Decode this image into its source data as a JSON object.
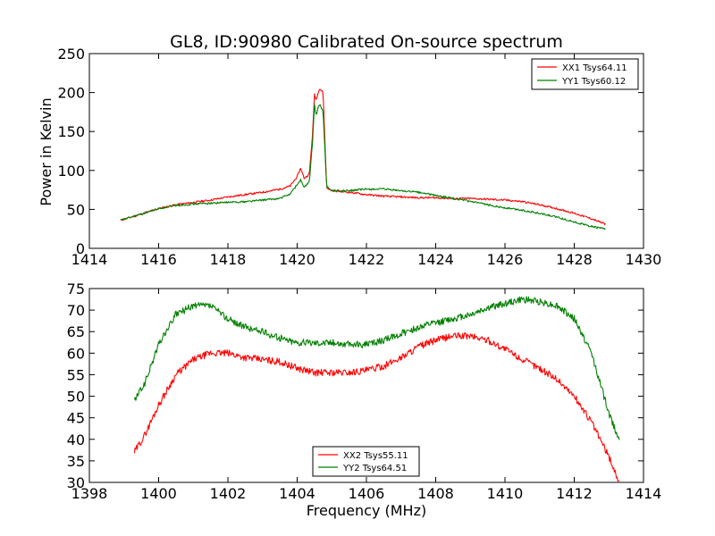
{
  "title": "GL8, ID:90980 Calibrated On-source spectrum",
  "chart_data": [
    {
      "type": "line",
      "ylabel": "Power in Kelvin",
      "xlabel": "",
      "xlim": [
        1414,
        1430
      ],
      "ylim": [
        0,
        250
      ],
      "xticks": [
        "1414",
        "1416",
        "1418",
        "1420",
        "1422",
        "1424",
        "1426",
        "1428",
        "1430"
      ],
      "yticks": [
        "0",
        "50",
        "100",
        "150",
        "200",
        "250"
      ],
      "legend_position": "top-right",
      "grid": false,
      "noise": 1.2,
      "series": [
        {
          "name": "XX1 Tsys64.11",
          "color": "#ff0000",
          "points": [
            [
              1414.9,
              36
            ],
            [
              1415.5,
              44
            ],
            [
              1416.0,
              51
            ],
            [
              1416.5,
              56
            ],
            [
              1417.0,
              59
            ],
            [
              1417.5,
              62
            ],
            [
              1418.0,
              66
            ],
            [
              1418.5,
              69
            ],
            [
              1419.0,
              72
            ],
            [
              1419.5,
              76
            ],
            [
              1419.8,
              80
            ],
            [
              1420.0,
              92
            ],
            [
              1420.1,
              103
            ],
            [
              1420.2,
              90
            ],
            [
              1420.35,
              95
            ],
            [
              1420.45,
              150
            ],
            [
              1420.5,
              198
            ],
            [
              1420.55,
              190
            ],
            [
              1420.6,
              200
            ],
            [
              1420.65,
              205
            ],
            [
              1420.75,
              200
            ],
            [
              1420.85,
              78
            ],
            [
              1421.0,
              74
            ],
            [
              1421.5,
              72
            ],
            [
              1422.0,
              69
            ],
            [
              1422.5,
              67
            ],
            [
              1423.0,
              66
            ],
            [
              1423.5,
              65
            ],
            [
              1424.0,
              65
            ],
            [
              1424.5,
              64
            ],
            [
              1425.0,
              64
            ],
            [
              1425.5,
              63
            ],
            [
              1426.0,
              62
            ],
            [
              1426.5,
              60
            ],
            [
              1427.0,
              56
            ],
            [
              1427.5,
              51
            ],
            [
              1428.0,
              45
            ],
            [
              1428.5,
              38
            ],
            [
              1428.9,
              31
            ]
          ]
        },
        {
          "name": "YY1 Tsys60.12",
          "color": "#008000",
          "points": [
            [
              1414.9,
              36
            ],
            [
              1415.5,
              44
            ],
            [
              1416.0,
              51
            ],
            [
              1416.5,
              55
            ],
            [
              1417.0,
              57
            ],
            [
              1417.5,
              58
            ],
            [
              1418.0,
              59
            ],
            [
              1418.5,
              60
            ],
            [
              1419.0,
              62
            ],
            [
              1419.5,
              64
            ],
            [
              1419.8,
              70
            ],
            [
              1420.0,
              82
            ],
            [
              1420.1,
              88
            ],
            [
              1420.2,
              78
            ],
            [
              1420.35,
              85
            ],
            [
              1420.45,
              140
            ],
            [
              1420.5,
              185
            ],
            [
              1420.55,
              170
            ],
            [
              1420.6,
              180
            ],
            [
              1420.65,
              185
            ],
            [
              1420.75,
              175
            ],
            [
              1420.85,
              80
            ],
            [
              1421.0,
              74
            ],
            [
              1421.5,
              74
            ],
            [
              1422.0,
              76
            ],
            [
              1422.5,
              76
            ],
            [
              1423.0,
              74
            ],
            [
              1423.5,
              72
            ],
            [
              1424.0,
              68
            ],
            [
              1424.5,
              64
            ],
            [
              1425.0,
              60
            ],
            [
              1425.5,
              56
            ],
            [
              1426.0,
              52
            ],
            [
              1426.5,
              49
            ],
            [
              1427.0,
              45
            ],
            [
              1427.5,
              40
            ],
            [
              1428.0,
              34
            ],
            [
              1428.5,
              28
            ],
            [
              1428.9,
              25
            ]
          ]
        }
      ]
    },
    {
      "type": "line",
      "xlabel": "Frequency (MHz)",
      "ylabel": "",
      "xlim": [
        1398,
        1414
      ],
      "ylim": [
        30,
        75
      ],
      "xticks": [
        "1398",
        "1400",
        "1402",
        "1404",
        "1406",
        "1408",
        "1410",
        "1412",
        "1414"
      ],
      "yticks": [
        "30",
        "35",
        "40",
        "45",
        "50",
        "55",
        "60",
        "65",
        "70",
        "75"
      ],
      "legend_position": "bottom-center",
      "grid": false,
      "noise": 0.8,
      "series": [
        {
          "name": "XX2 Tsys55.11",
          "color": "#ff0000",
          "points": [
            [
              1399.3,
              37
            ],
            [
              1399.6,
              41
            ],
            [
              1400.0,
              48
            ],
            [
              1400.5,
              55
            ],
            [
              1401.0,
              58.5
            ],
            [
              1401.5,
              60
            ],
            [
              1402.0,
              60
            ],
            [
              1402.5,
              59
            ],
            [
              1403.0,
              58.5
            ],
            [
              1403.5,
              58
            ],
            [
              1404.0,
              56.5
            ],
            [
              1404.5,
              55.5
            ],
            [
              1405.0,
              55.5
            ],
            [
              1405.5,
              55.5
            ],
            [
              1406.0,
              56
            ],
            [
              1406.5,
              57
            ],
            [
              1407.0,
              59
            ],
            [
              1407.5,
              61.5
            ],
            [
              1408.0,
              63
            ],
            [
              1408.5,
              64
            ],
            [
              1409.0,
              64
            ],
            [
              1409.5,
              63
            ],
            [
              1410.0,
              61
            ],
            [
              1410.5,
              58.5
            ],
            [
              1411.0,
              56.5
            ],
            [
              1411.5,
              54
            ],
            [
              1412.0,
              50
            ],
            [
              1412.5,
              44
            ],
            [
              1413.0,
              36
            ],
            [
              1413.3,
              30
            ]
          ]
        },
        {
          "name": "YY2 Tsys64.51",
          "color": "#008000",
          "points": [
            [
              1399.3,
              49
            ],
            [
              1399.6,
              53
            ],
            [
              1400.0,
              62
            ],
            [
              1400.5,
              69
            ],
            [
              1401.0,
              71
            ],
            [
              1401.5,
              71
            ],
            [
              1402.0,
              68
            ],
            [
              1402.5,
              66
            ],
            [
              1403.0,
              65
            ],
            [
              1403.5,
              63.5
            ],
            [
              1404.0,
              62.5
            ],
            [
              1404.5,
              62.5
            ],
            [
              1405.0,
              62.5
            ],
            [
              1405.5,
              62
            ],
            [
              1406.0,
              62
            ],
            [
              1406.5,
              63
            ],
            [
              1407.0,
              64.5
            ],
            [
              1407.5,
              66
            ],
            [
              1408.0,
              67
            ],
            [
              1408.5,
              68
            ],
            [
              1409.0,
              69
            ],
            [
              1409.5,
              70.5
            ],
            [
              1410.0,
              71.5
            ],
            [
              1410.5,
              72.5
            ],
            [
              1411.0,
              72
            ],
            [
              1411.5,
              71
            ],
            [
              1412.0,
              68
            ],
            [
              1412.5,
              60
            ],
            [
              1413.0,
              46
            ],
            [
              1413.3,
              40
            ]
          ]
        }
      ]
    }
  ]
}
